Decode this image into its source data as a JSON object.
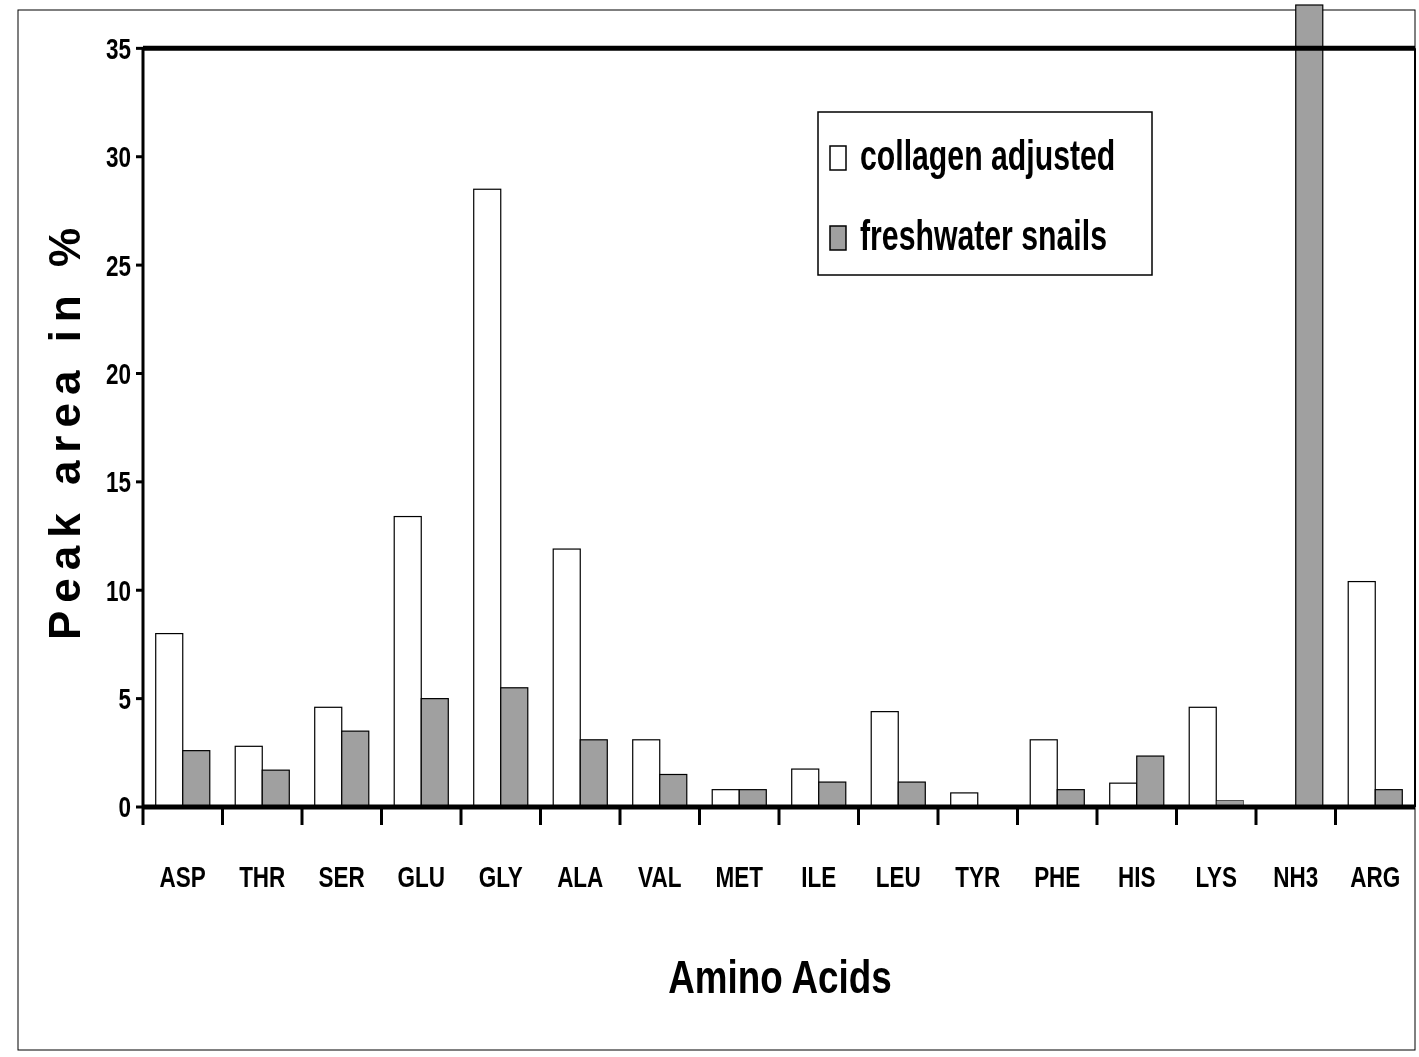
{
  "chart_data": {
    "type": "bar",
    "xlabel": "Amino Acids",
    "ylabel": "Peak area in %",
    "categories": [
      "ASP",
      "THR",
      "SER",
      "GLU",
      "GLY",
      "ALA",
      "VAL",
      "MET",
      "ILE",
      "LEU",
      "TYR",
      "PHE",
      "HIS",
      "LYS",
      "NH3",
      "ARG"
    ],
    "series": [
      {
        "name": "collagen adjusted",
        "color": "#ffffff",
        "values": [
          8.0,
          2.8,
          4.6,
          13.4,
          28.5,
          11.9,
          3.1,
          0.8,
          1.75,
          4.4,
          0.65,
          3.1,
          1.1,
          4.6,
          null,
          10.4
        ]
      },
      {
        "name": "freshwater snails",
        "color": "#a0a0a0",
        "values": [
          2.6,
          1.7,
          3.5,
          5.0,
          5.5,
          3.1,
          1.5,
          0.8,
          1.15,
          1.15,
          null,
          0.8,
          2.35,
          0.3,
          37,
          0.8
        ]
      }
    ],
    "ylim": [
      0,
      37
    ],
    "yticks": [
      0,
      5,
      10,
      15,
      20,
      25,
      30,
      35
    ],
    "legend": "top right"
  }
}
